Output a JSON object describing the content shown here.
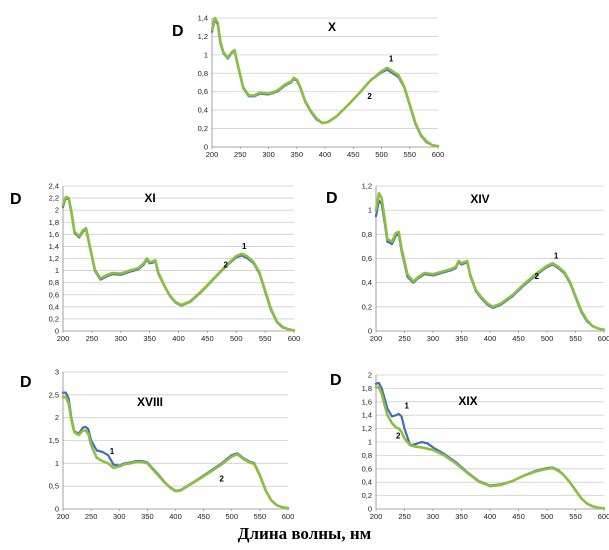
{
  "figure": {
    "xlabel": "Длина волны, нм",
    "series_colors": {
      "1": "#3d6fb6",
      "2": "#8cbf3f"
    }
  },
  "chart_data": [
    {
      "type": "line",
      "title": "X",
      "ylabel": "D",
      "xlim": [
        200,
        600
      ],
      "ylim": [
        0,
        1.4
      ],
      "xticks": [
        200,
        250,
        300,
        350,
        400,
        450,
        500,
        550,
        600
      ],
      "yticks": [
        0,
        0.2,
        0.4,
        0.6,
        0.8,
        1,
        1.2,
        1.4
      ],
      "ytick_labels": [
        "0",
        "0,2",
        "0,4",
        "0,6",
        "0,8",
        "1",
        "1,2",
        "1,4"
      ],
      "grid": true,
      "series_labels": [
        {
          "name": "1",
          "x": 513,
          "y": 0.93
        },
        {
          "name": "2",
          "x": 475,
          "y": 0.52
        }
      ],
      "series": [
        {
          "name": "1",
          "x": [
            200,
            205,
            210,
            215,
            220,
            228,
            235,
            240,
            245,
            255,
            265,
            275,
            285,
            300,
            315,
            330,
            340,
            345,
            350,
            355,
            365,
            375,
            385,
            395,
            405,
            420,
            440,
            460,
            480,
            500,
            510,
            520,
            530,
            540,
            550,
            560,
            570,
            580,
            590,
            600
          ],
          "y": [
            1.25,
            1.38,
            1.33,
            1.12,
            1.02,
            0.96,
            1.02,
            1.04,
            0.9,
            0.64,
            0.55,
            0.55,
            0.58,
            0.57,
            0.6,
            0.67,
            0.7,
            0.74,
            0.72,
            0.66,
            0.49,
            0.38,
            0.3,
            0.26,
            0.27,
            0.33,
            0.45,
            0.58,
            0.72,
            0.81,
            0.84,
            0.8,
            0.76,
            0.65,
            0.45,
            0.25,
            0.12,
            0.05,
            0.02,
            0.01
          ]
        },
        {
          "name": "2",
          "x": [
            200,
            205,
            210,
            215,
            220,
            228,
            235,
            240,
            245,
            255,
            265,
            275,
            285,
            300,
            315,
            330,
            340,
            345,
            350,
            355,
            365,
            375,
            385,
            395,
            405,
            420,
            440,
            460,
            480,
            500,
            510,
            520,
            530,
            540,
            550,
            560,
            570,
            580,
            590,
            600
          ],
          "y": [
            1.27,
            1.4,
            1.35,
            1.14,
            1.03,
            0.97,
            1.03,
            1.05,
            0.91,
            0.65,
            0.56,
            0.56,
            0.59,
            0.58,
            0.61,
            0.68,
            0.71,
            0.75,
            0.73,
            0.67,
            0.5,
            0.39,
            0.31,
            0.26,
            0.27,
            0.33,
            0.45,
            0.58,
            0.72,
            0.82,
            0.86,
            0.82,
            0.78,
            0.66,
            0.46,
            0.26,
            0.13,
            0.06,
            0.02,
            0.01
          ]
        }
      ]
    },
    {
      "type": "line",
      "title": "XI",
      "ylabel": "D",
      "xlim": [
        200,
        600
      ],
      "ylim": [
        0,
        2.4
      ],
      "xticks": [
        200,
        250,
        300,
        350,
        400,
        450,
        500,
        550,
        600
      ],
      "yticks": [
        0,
        0.2,
        0.4,
        0.6,
        0.8,
        1,
        1.2,
        1.4,
        1.6,
        1.8,
        2,
        2.2,
        2.4
      ],
      "ytick_labels": [
        "0",
        "0,2",
        "0,4",
        "0,6",
        "0,8",
        "1",
        "1,2",
        "1,4",
        "1,6",
        "1,8",
        "2",
        "2,2",
        "2,4"
      ],
      "grid": true,
      "series_labels": [
        {
          "name": "1",
          "x": 510,
          "y": 1.36
        },
        {
          "name": "2",
          "x": 478,
          "y": 1.05
        }
      ],
      "series": [
        {
          "name": "1",
          "x": [
            200,
            205,
            210,
            215,
            220,
            228,
            235,
            240,
            245,
            255,
            265,
            275,
            285,
            300,
            315,
            330,
            340,
            345,
            350,
            355,
            360,
            365,
            375,
            385,
            395,
            405,
            420,
            440,
            460,
            480,
            500,
            510,
            520,
            530,
            540,
            550,
            560,
            570,
            580,
            590,
            600
          ],
          "y": [
            2.05,
            2.2,
            2.18,
            1.92,
            1.62,
            1.55,
            1.65,
            1.68,
            1.45,
            1.0,
            0.85,
            0.9,
            0.94,
            0.93,
            0.98,
            1.02,
            1.1,
            1.18,
            1.12,
            1.13,
            1.15,
            0.95,
            0.75,
            0.58,
            0.47,
            0.42,
            0.48,
            0.65,
            0.85,
            1.05,
            1.22,
            1.25,
            1.2,
            1.12,
            0.95,
            0.65,
            0.35,
            0.15,
            0.06,
            0.03,
            0.01
          ]
        },
        {
          "name": "2",
          "x": [
            200,
            205,
            210,
            215,
            220,
            228,
            235,
            240,
            245,
            255,
            265,
            275,
            285,
            300,
            315,
            330,
            340,
            345,
            350,
            355,
            360,
            365,
            375,
            385,
            395,
            405,
            420,
            440,
            460,
            480,
            500,
            510,
            520,
            530,
            540,
            550,
            560,
            570,
            580,
            590,
            600
          ],
          "y": [
            2.08,
            2.22,
            2.2,
            1.95,
            1.64,
            1.57,
            1.67,
            1.7,
            1.47,
            1.02,
            0.87,
            0.92,
            0.96,
            0.95,
            1.0,
            1.04,
            1.12,
            1.2,
            1.14,
            1.15,
            1.17,
            0.97,
            0.76,
            0.59,
            0.48,
            0.43,
            0.49,
            0.66,
            0.86,
            1.06,
            1.24,
            1.28,
            1.23,
            1.14,
            0.97,
            0.67,
            0.37,
            0.16,
            0.07,
            0.03,
            0.01
          ]
        }
      ]
    },
    {
      "type": "line",
      "title": "XIV",
      "ylabel": "D",
      "xlim": [
        200,
        600
      ],
      "ylim": [
        0,
        1.2
      ],
      "xticks": [
        200,
        250,
        300,
        350,
        400,
        450,
        500,
        550,
        600
      ],
      "yticks": [
        0,
        0.2,
        0.4,
        0.6,
        0.8,
        1,
        1.2
      ],
      "ytick_labels": [
        "0",
        "0,2",
        "0,4",
        "0,6",
        "0,8",
        "1",
        "1,2"
      ],
      "grid": true,
      "series_labels": [
        {
          "name": "1",
          "x": 512,
          "y": 0.6
        },
        {
          "name": "2",
          "x": 478,
          "y": 0.43
        }
      ],
      "series": [
        {
          "name": "1",
          "x": [
            200,
            205,
            210,
            215,
            220,
            228,
            235,
            240,
            245,
            255,
            265,
            275,
            285,
            300,
            315,
            330,
            340,
            345,
            350,
            355,
            360,
            365,
            375,
            385,
            395,
            405,
            420,
            440,
            460,
            480,
            500,
            510,
            520,
            530,
            540,
            550,
            560,
            570,
            580,
            590,
            600
          ],
          "y": [
            0.95,
            1.08,
            1.05,
            0.9,
            0.74,
            0.72,
            0.79,
            0.8,
            0.66,
            0.45,
            0.4,
            0.44,
            0.47,
            0.46,
            0.48,
            0.5,
            0.52,
            0.57,
            0.55,
            0.56,
            0.57,
            0.46,
            0.33,
            0.27,
            0.22,
            0.19,
            0.22,
            0.29,
            0.38,
            0.46,
            0.53,
            0.55,
            0.52,
            0.48,
            0.4,
            0.28,
            0.16,
            0.08,
            0.04,
            0.02,
            0.01
          ]
        },
        {
          "name": "2",
          "x": [
            200,
            205,
            210,
            215,
            220,
            228,
            235,
            240,
            245,
            255,
            265,
            275,
            285,
            300,
            315,
            330,
            340,
            345,
            350,
            355,
            360,
            365,
            375,
            385,
            395,
            405,
            420,
            440,
            460,
            480,
            500,
            510,
            520,
            530,
            540,
            550,
            560,
            570,
            580,
            590,
            600
          ],
          "y": [
            1.0,
            1.14,
            1.1,
            0.93,
            0.76,
            0.74,
            0.81,
            0.82,
            0.68,
            0.47,
            0.41,
            0.45,
            0.48,
            0.47,
            0.49,
            0.51,
            0.53,
            0.58,
            0.56,
            0.57,
            0.58,
            0.47,
            0.34,
            0.28,
            0.23,
            0.2,
            0.23,
            0.3,
            0.39,
            0.47,
            0.54,
            0.56,
            0.53,
            0.49,
            0.41,
            0.29,
            0.17,
            0.09,
            0.04,
            0.02,
            0.01
          ]
        }
      ]
    },
    {
      "type": "line",
      "title": "XVIII",
      "ylabel": "D",
      "xlim": [
        200,
        600
      ],
      "ylim": [
        0,
        3
      ],
      "xticks": [
        200,
        250,
        300,
        350,
        400,
        450,
        500,
        550,
        600
      ],
      "yticks": [
        0,
        0.5,
        1,
        1.5,
        2,
        2.5,
        3
      ],
      "ytick_labels": [
        "0",
        "0,5",
        "1",
        "1,5",
        "2",
        "2,5",
        "3"
      ],
      "grid": true,
      "series_labels": [
        {
          "name": "1",
          "x": 283,
          "y": 1.2
        },
        {
          "name": "2",
          "x": 478,
          "y": 0.6
        }
      ],
      "series": [
        {
          "name": "1",
          "x": [
            200,
            205,
            210,
            215,
            220,
            228,
            235,
            240,
            245,
            250,
            260,
            270,
            280,
            290,
            300,
            310,
            320,
            330,
            340,
            350,
            360,
            370,
            380,
            390,
            400,
            410,
            420,
            440,
            460,
            480,
            500,
            510,
            520,
            530,
            540,
            550,
            560,
            570,
            580,
            590,
            600
          ],
          "y": [
            2.55,
            2.55,
            2.42,
            2.0,
            1.7,
            1.65,
            1.78,
            1.8,
            1.75,
            1.5,
            1.28,
            1.25,
            1.18,
            0.97,
            0.95,
            1.0,
            1.02,
            1.05,
            1.05,
            1.02,
            0.88,
            0.75,
            0.6,
            0.48,
            0.4,
            0.42,
            0.5,
            0.65,
            0.82,
            0.98,
            1.18,
            1.22,
            1.12,
            1.05,
            1.0,
            0.75,
            0.42,
            0.2,
            0.08,
            0.04,
            0.02
          ]
        },
        {
          "name": "2",
          "x": [
            200,
            205,
            210,
            215,
            220,
            228,
            235,
            240,
            245,
            250,
            260,
            270,
            280,
            290,
            300,
            310,
            320,
            330,
            340,
            350,
            360,
            370,
            380,
            390,
            400,
            410,
            420,
            440,
            460,
            480,
            500,
            510,
            520,
            530,
            540,
            550,
            560,
            570,
            580,
            590,
            600
          ],
          "y": [
            2.45,
            2.45,
            2.32,
            1.95,
            1.68,
            1.62,
            1.72,
            1.72,
            1.65,
            1.4,
            1.12,
            1.05,
            1.0,
            0.9,
            0.93,
            0.98,
            1.0,
            1.03,
            1.03,
            1.0,
            0.86,
            0.73,
            0.59,
            0.47,
            0.39,
            0.41,
            0.49,
            0.64,
            0.8,
            0.96,
            1.15,
            1.2,
            1.1,
            1.03,
            0.98,
            0.73,
            0.41,
            0.19,
            0.08,
            0.04,
            0.02
          ]
        }
      ]
    },
    {
      "type": "line",
      "title": "XIX",
      "ylabel": "D",
      "xlim": [
        200,
        600
      ],
      "ylim": [
        0,
        2
      ],
      "xticks": [
        200,
        250,
        300,
        350,
        400,
        450,
        500,
        550,
        600
      ],
      "yticks": [
        0,
        0.2,
        0.4,
        0.6,
        0.8,
        1,
        1.2,
        1.4,
        1.6,
        1.8,
        2
      ],
      "ytick_labels": [
        "0",
        "0,2",
        "0,4",
        "0,6",
        "0,8",
        "1",
        "1,2",
        "1,4",
        "1,6",
        "1,8",
        "2"
      ],
      "grid": true,
      "series_labels": [
        {
          "name": "1",
          "x": 250,
          "y": 1.5
        },
        {
          "name": "2",
          "x": 235,
          "y": 1.05
        }
      ],
      "series": [
        {
          "name": "1",
          "x": [
            200,
            205,
            210,
            215,
            220,
            228,
            235,
            240,
            245,
            250,
            260,
            270,
            280,
            290,
            300,
            320,
            340,
            360,
            380,
            400,
            420,
            440,
            460,
            480,
            500,
            510,
            520,
            530,
            540,
            550,
            560,
            570,
            580,
            590,
            600
          ],
          "y": [
            1.87,
            1.88,
            1.8,
            1.65,
            1.5,
            1.38,
            1.4,
            1.42,
            1.38,
            1.2,
            0.95,
            0.97,
            1.0,
            0.98,
            0.92,
            0.82,
            0.7,
            0.55,
            0.42,
            0.35,
            0.37,
            0.42,
            0.5,
            0.57,
            0.61,
            0.62,
            0.58,
            0.5,
            0.4,
            0.28,
            0.16,
            0.08,
            0.04,
            0.02,
            0.01
          ]
        },
        {
          "name": "2",
          "x": [
            200,
            205,
            210,
            215,
            220,
            228,
            235,
            240,
            245,
            250,
            260,
            270,
            280,
            290,
            300,
            320,
            340,
            360,
            380,
            400,
            420,
            440,
            460,
            480,
            500,
            510,
            520,
            530,
            540,
            550,
            560,
            570,
            580,
            590,
            600
          ],
          "y": [
            1.82,
            1.82,
            1.72,
            1.55,
            1.4,
            1.28,
            1.22,
            1.2,
            1.15,
            1.05,
            0.95,
            0.93,
            0.92,
            0.9,
            0.88,
            0.8,
            0.68,
            0.54,
            0.41,
            0.34,
            0.36,
            0.42,
            0.5,
            0.56,
            0.6,
            0.61,
            0.57,
            0.5,
            0.4,
            0.28,
            0.16,
            0.08,
            0.04,
            0.02,
            0.01
          ]
        }
      ]
    }
  ]
}
